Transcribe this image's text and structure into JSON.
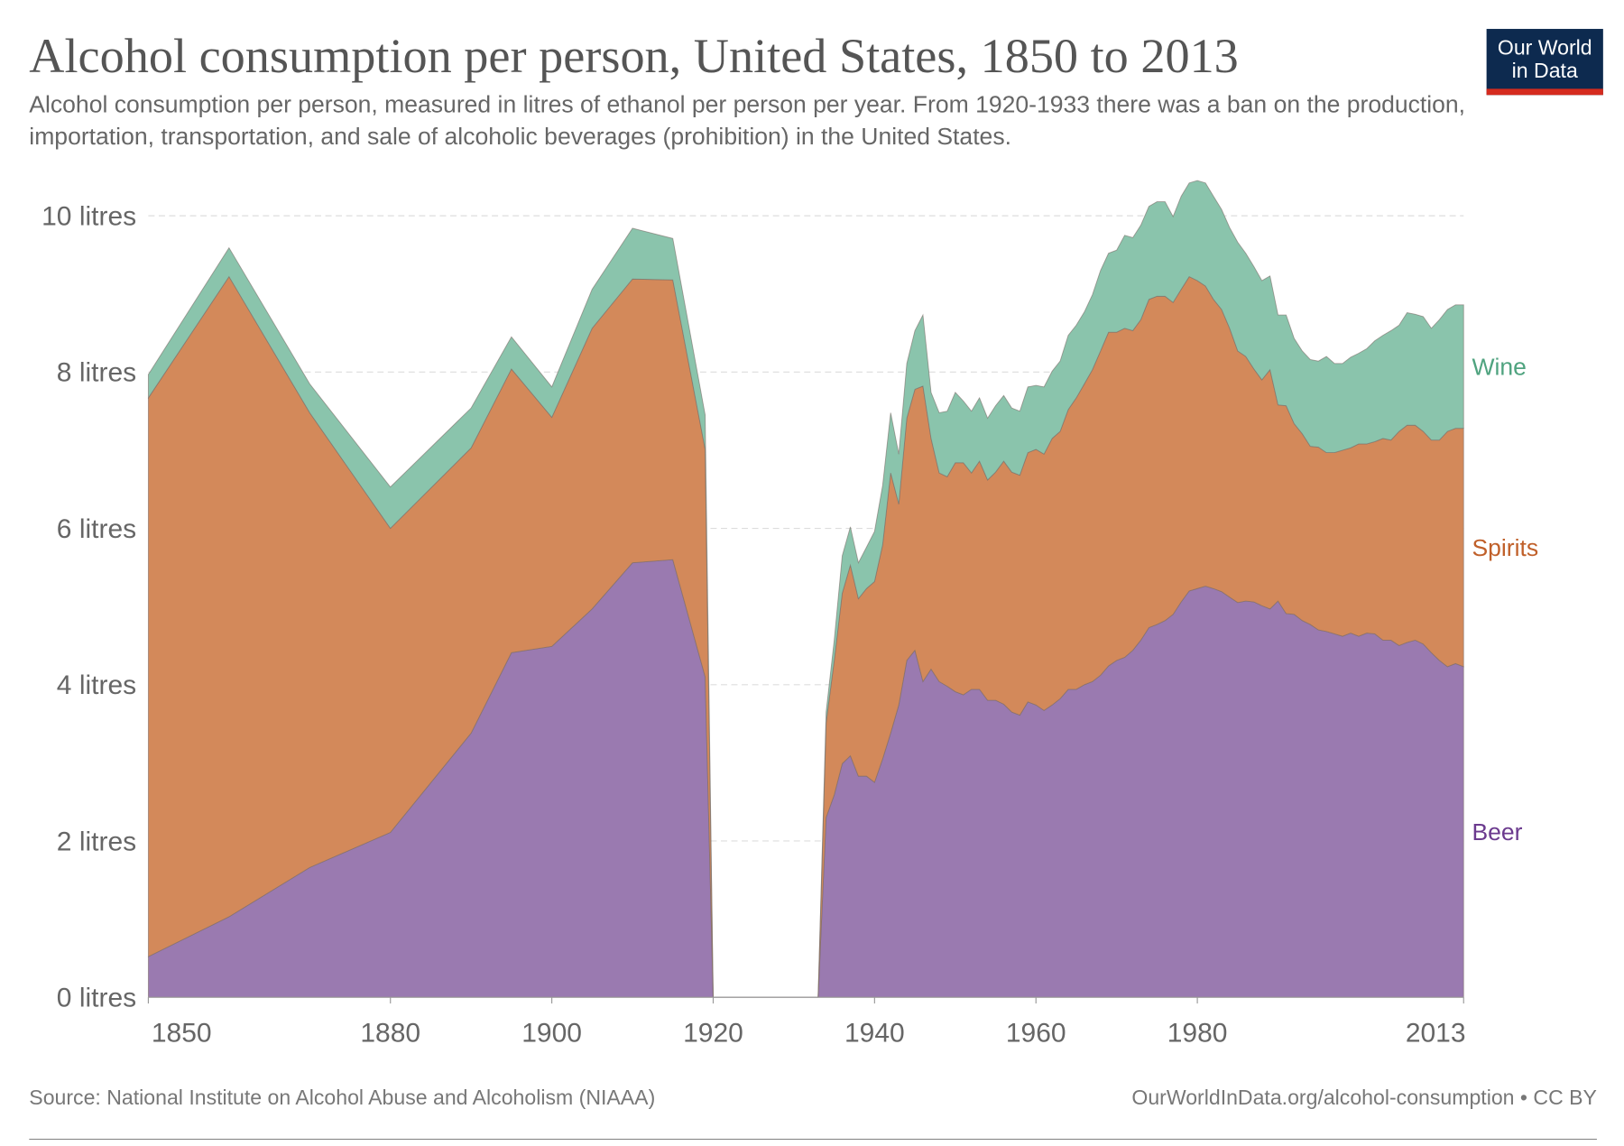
{
  "title": "Alcohol consumption per person, United States, 1850 to 2013",
  "subtitle": "Alcohol consumption per person, measured in litres of ethanol per person per year. From 1920-1933 there was a ban on the production, importation, transportation, and sale of alcoholic beverages (prohibition) in the United States.",
  "logo": {
    "line1": "Our World",
    "line2": "in Data",
    "bg": "#0d2a4f",
    "accent": "#d52b1e"
  },
  "source": "Source: National Institute on Alcohol Abuse and Alcoholism (NIAAA)",
  "license": "OurWorldInData.org/alcohol-consumption • CC BY",
  "chart_data": {
    "type": "area",
    "stacked": true,
    "title": "Alcohol consumption per person, United States, 1850 to 2013",
    "xlabel": "",
    "ylabel": "",
    "xlim": [
      1850,
      2013
    ],
    "ylim": [
      0,
      10
    ],
    "grid": true,
    "legend": "right-inline",
    "x_ticks": [
      "1850",
      "1880",
      "1900",
      "1920",
      "1940",
      "1960",
      "1980",
      "2013"
    ],
    "y_ticks": [
      "0 litres",
      "2 litres",
      "4 litres",
      "6 litres",
      "8 litres",
      "10 litres"
    ],
    "x": [
      1850,
      1860,
      1870,
      1880,
      1890,
      1895,
      1900,
      1905,
      1910,
      1915,
      1919,
      1920,
      1933,
      1934,
      1935,
      1936,
      1937,
      1938,
      1939,
      1940,
      1941,
      1942,
      1943,
      1944,
      1945,
      1946,
      1947,
      1948,
      1949,
      1950,
      1951,
      1952,
      1953,
      1954,
      1955,
      1956,
      1957,
      1958,
      1959,
      1960,
      1961,
      1962,
      1963,
      1964,
      1965,
      1966,
      1967,
      1968,
      1969,
      1970,
      1971,
      1972,
      1973,
      1974,
      1975,
      1976,
      1977,
      1978,
      1979,
      1980,
      1981,
      1982,
      1983,
      1984,
      1985,
      1986,
      1987,
      1988,
      1989,
      1990,
      1991,
      1992,
      1993,
      1994,
      1995,
      1996,
      1997,
      1998,
      1999,
      2000,
      2001,
      2002,
      2003,
      2004,
      2005,
      2006,
      2007,
      2008,
      2009,
      2010,
      2011,
      2012,
      2013
    ],
    "series": [
      {
        "name": "Beer",
        "color": "#9a7ab0",
        "label_color": "#6b3a8e",
        "values": [
          0.52,
          1.03,
          1.66,
          2.11,
          3.38,
          4.41,
          4.49,
          4.97,
          5.56,
          5.6,
          4.1,
          0,
          0,
          2.3,
          2.59,
          2.99,
          3.09,
          2.83,
          2.83,
          2.75,
          3.05,
          3.38,
          3.74,
          4.31,
          4.44,
          4.04,
          4.2,
          4.04,
          3.98,
          3.91,
          3.87,
          3.94,
          3.94,
          3.8,
          3.8,
          3.75,
          3.65,
          3.61,
          3.78,
          3.74,
          3.67,
          3.74,
          3.82,
          3.94,
          3.94,
          4.0,
          4.04,
          4.12,
          4.24,
          4.31,
          4.35,
          4.44,
          4.57,
          4.73,
          4.77,
          4.82,
          4.9,
          5.06,
          5.2,
          5.23,
          5.26,
          5.23,
          5.19,
          5.12,
          5.05,
          5.07,
          5.06,
          5.01,
          4.97,
          5.07,
          4.91,
          4.9,
          4.82,
          4.77,
          4.7,
          4.68,
          4.65,
          4.62,
          4.66,
          4.62,
          4.66,
          4.65,
          4.57,
          4.57,
          4.5,
          4.54,
          4.57,
          4.52,
          4.41,
          4.31,
          4.23,
          4.27,
          4.23
        ]
      },
      {
        "name": "Spirits",
        "color": "#d3895a",
        "label_color": "#c0602a",
        "values": [
          7.15,
          8.19,
          5.82,
          3.89,
          3.65,
          3.63,
          2.93,
          3.59,
          3.63,
          3.58,
          2.91,
          0,
          0,
          1.21,
          1.72,
          2.18,
          2.44,
          2.27,
          2.4,
          2.57,
          2.74,
          3.33,
          2.57,
          3.1,
          3.34,
          3.78,
          2.95,
          2.67,
          2.68,
          2.93,
          2.97,
          2.77,
          2.92,
          2.82,
          2.92,
          3.11,
          3.07,
          3.07,
          3.19,
          3.27,
          3.28,
          3.41,
          3.42,
          3.58,
          3.73,
          3.85,
          3.99,
          4.15,
          4.27,
          4.2,
          4.21,
          4.09,
          4.1,
          4.2,
          4.2,
          4.15,
          3.99,
          4.0,
          4.02,
          3.94,
          3.84,
          3.7,
          3.61,
          3.44,
          3.22,
          3.13,
          2.98,
          2.89,
          3.06,
          2.51,
          2.66,
          2.44,
          2.39,
          2.28,
          2.34,
          2.29,
          2.32,
          2.38,
          2.37,
          2.46,
          2.42,
          2.46,
          2.58,
          2.56,
          2.74,
          2.78,
          2.75,
          2.72,
          2.72,
          2.82,
          3.01,
          3.01,
          3.05
        ]
      },
      {
        "name": "Wine",
        "color": "#8ac4ac",
        "label_color": "#4fa37f",
        "values": [
          0.3,
          0.37,
          0.37,
          0.53,
          0.51,
          0.41,
          0.39,
          0.5,
          0.65,
          0.53,
          0.44,
          0,
          0,
          0.14,
          0.26,
          0.48,
          0.49,
          0.46,
          0.53,
          0.64,
          0.76,
          0.77,
          0.64,
          0.7,
          0.75,
          0.91,
          0.59,
          0.77,
          0.84,
          0.9,
          0.79,
          0.79,
          0.81,
          0.79,
          0.85,
          0.84,
          0.82,
          0.82,
          0.84,
          0.82,
          0.86,
          0.86,
          0.9,
          0.95,
          0.93,
          0.92,
          0.96,
          1.03,
          1.01,
          1.05,
          1.19,
          1.19,
          1.21,
          1.19,
          1.21,
          1.21,
          1.1,
          1.19,
          1.2,
          1.28,
          1.32,
          1.32,
          1.28,
          1.29,
          1.39,
          1.32,
          1.31,
          1.27,
          1.2,
          1.15,
          1.16,
          1.09,
          1.06,
          1.11,
          1.1,
          1.23,
          1.14,
          1.11,
          1.16,
          1.16,
          1.22,
          1.29,
          1.32,
          1.4,
          1.36,
          1.44,
          1.42,
          1.47,
          1.43,
          1.54,
          1.56,
          1.58,
          1.58
        ]
      }
    ]
  }
}
